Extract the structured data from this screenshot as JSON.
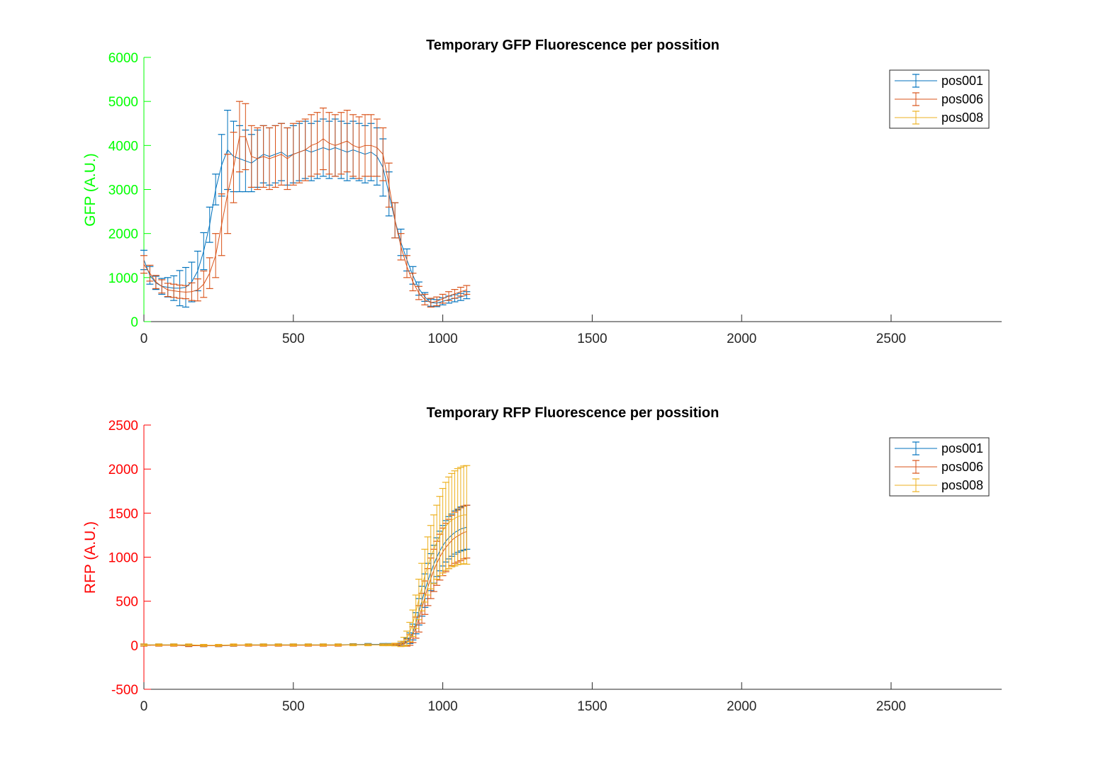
{
  "chart_data": [
    {
      "type": "line",
      "title": "Temporary GFP Fluorescence per possition",
      "xlabel": "",
      "ylabel": "GFP (A.U.)",
      "ylabel_color": "#00ff00",
      "xlim": [
        0,
        2870
      ],
      "ylim": [
        0,
        6000
      ],
      "xticks": [
        0,
        500,
        1000,
        1500,
        2000,
        2500
      ],
      "yticks": [
        0,
        1000,
        2000,
        3000,
        4000,
        5000,
        6000
      ],
      "grid": false,
      "legend_position": "top-right",
      "series": [
        {
          "name": "pos001",
          "color": "#0072bd",
          "x": [
            0,
            20,
            40,
            60,
            80,
            100,
            120,
            140,
            160,
            180,
            200,
            220,
            240,
            260,
            280,
            300,
            320,
            340,
            360,
            380,
            400,
            420,
            440,
            460,
            480,
            500,
            520,
            540,
            560,
            580,
            600,
            620,
            640,
            660,
            680,
            700,
            720,
            740,
            760,
            780,
            800,
            820,
            840,
            860,
            880,
            900,
            920,
            940,
            960,
            980,
            1000,
            1020,
            1040,
            1060,
            1080
          ],
          "y": [
            1400,
            1050,
            880,
            800,
            780,
            760,
            760,
            780,
            900,
            1150,
            1600,
            2200,
            3000,
            3550,
            3900,
            3750,
            3700,
            3650,
            3600,
            3700,
            3800,
            3750,
            3800,
            3850,
            3750,
            3800,
            3850,
            3900,
            3850,
            3900,
            3950,
            3900,
            3950,
            3900,
            3850,
            3900,
            3850,
            3800,
            3850,
            3750,
            3500,
            2900,
            2300,
            1800,
            1400,
            1050,
            750,
            560,
            430,
            420,
            460,
            500,
            530,
            560,
            600
          ],
          "err": [
            220,
            200,
            150,
            180,
            220,
            280,
            400,
            450,
            450,
            450,
            420,
            400,
            350,
            700,
            900,
            800,
            750,
            700,
            650,
            650,
            650,
            650,
            650,
            650,
            650,
            650,
            650,
            650,
            650,
            650,
            650,
            650,
            650,
            650,
            650,
            650,
            650,
            650,
            650,
            650,
            650,
            500,
            400,
            300,
            250,
            200,
            150,
            100,
            80,
            80,
            80,
            80,
            80,
            80,
            80
          ]
        },
        {
          "name": "pos006",
          "color": "#d95319",
          "x": [
            0,
            20,
            40,
            60,
            80,
            100,
            120,
            140,
            160,
            180,
            200,
            220,
            240,
            260,
            280,
            300,
            320,
            340,
            360,
            380,
            400,
            420,
            440,
            460,
            480,
            500,
            520,
            540,
            560,
            580,
            600,
            620,
            640,
            660,
            680,
            700,
            720,
            740,
            760,
            780,
            800,
            820,
            840,
            860,
            880,
            900,
            920,
            940,
            960,
            980,
            1000,
            1020,
            1040,
            1060,
            1080
          ],
          "y": [
            1300,
            1100,
            900,
            800,
            720,
            700,
            680,
            670,
            680,
            720,
            850,
            1100,
            1500,
            2200,
            2900,
            3500,
            4200,
            4200,
            3750,
            3700,
            3750,
            3700,
            3750,
            3800,
            3700,
            3800,
            3850,
            3900,
            4000,
            4050,
            4150,
            4050,
            4000,
            4050,
            4100,
            4000,
            3950,
            4000,
            4000,
            3950,
            3800,
            3100,
            2300,
            1700,
            1250,
            900,
            650,
            500,
            430,
            460,
            520,
            580,
            630,
            680,
            720
          ],
          "err": [
            200,
            180,
            150,
            150,
            150,
            150,
            150,
            150,
            200,
            250,
            300,
            350,
            500,
            700,
            900,
            800,
            800,
            750,
            700,
            700,
            700,
            700,
            700,
            700,
            700,
            700,
            700,
            700,
            700,
            700,
            700,
            700,
            700,
            700,
            700,
            700,
            700,
            700,
            700,
            650,
            600,
            500,
            400,
            300,
            250,
            200,
            150,
            120,
            100,
            100,
            100,
            100,
            100,
            100,
            100
          ]
        },
        {
          "name": "pos008",
          "color": "#edb120",
          "x": [],
          "y": [],
          "err": []
        }
      ]
    },
    {
      "type": "line",
      "title": "Temporary RFP Fluorescence per possition",
      "xlabel": "",
      "ylabel": "RFP (A.U.)",
      "ylabel_color": "#ff0000",
      "xlim": [
        0,
        2870
      ],
      "ylim": [
        -500,
        2500
      ],
      "xticks": [
        0,
        500,
        1000,
        1500,
        2000,
        2500
      ],
      "yticks": [
        -500,
        0,
        500,
        1000,
        1500,
        2000,
        2500
      ],
      "grid": false,
      "legend_position": "top-right",
      "series": [
        {
          "name": "pos001",
          "color": "#0072bd",
          "x": [
            0,
            50,
            100,
            150,
            200,
            250,
            300,
            350,
            400,
            450,
            500,
            550,
            600,
            650,
            700,
            750,
            800,
            820,
            840,
            860,
            870,
            880,
            890,
            900,
            910,
            920,
            930,
            940,
            950,
            960,
            970,
            980,
            990,
            1000,
            1010,
            1020,
            1030,
            1040,
            1050,
            1060,
            1070,
            1080
          ],
          "y": [
            5,
            5,
            5,
            0,
            -5,
            -5,
            0,
            5,
            5,
            5,
            5,
            5,
            5,
            5,
            8,
            10,
            10,
            10,
            10,
            12,
            20,
            40,
            80,
            150,
            250,
            380,
            500,
            620,
            730,
            830,
            920,
            1000,
            1070,
            1130,
            1180,
            1220,
            1250,
            1280,
            1300,
            1320,
            1330,
            1340
          ],
          "err": [
            10,
            10,
            10,
            10,
            10,
            10,
            10,
            10,
            10,
            10,
            10,
            10,
            10,
            10,
            10,
            10,
            10,
            10,
            10,
            15,
            25,
            40,
            60,
            90,
            120,
            150,
            170,
            190,
            200,
            210,
            215,
            220,
            225,
            230,
            235,
            240,
            240,
            245,
            245,
            250,
            250,
            250
          ]
        },
        {
          "name": "pos006",
          "color": "#d95319",
          "x": [
            0,
            50,
            100,
            150,
            200,
            250,
            300,
            350,
            400,
            450,
            500,
            550,
            600,
            650,
            700,
            750,
            800,
            820,
            840,
            860,
            870,
            880,
            890,
            900,
            910,
            920,
            930,
            940,
            950,
            960,
            970,
            980,
            990,
            1000,
            1010,
            1020,
            1030,
            1040,
            1050,
            1060,
            1070,
            1080
          ],
          "y": [
            0,
            0,
            0,
            -5,
            -5,
            -5,
            0,
            0,
            0,
            0,
            0,
            0,
            0,
            0,
            5,
            5,
            5,
            5,
            5,
            8,
            15,
            30,
            60,
            120,
            200,
            300,
            420,
            540,
            660,
            760,
            850,
            930,
            1000,
            1060,
            1110,
            1150,
            1190,
            1220,
            1240,
            1260,
            1280,
            1290
          ],
          "err": [
            10,
            10,
            10,
            10,
            10,
            10,
            10,
            10,
            10,
            10,
            10,
            10,
            10,
            10,
            10,
            10,
            10,
            10,
            10,
            15,
            25,
            40,
            60,
            90,
            120,
            150,
            170,
            190,
            210,
            230,
            240,
            250,
            260,
            270,
            275,
            280,
            285,
            290,
            295,
            300,
            300,
            300
          ]
        },
        {
          "name": "pos008",
          "color": "#edb120",
          "x": [
            0,
            50,
            100,
            150,
            200,
            250,
            300,
            350,
            400,
            450,
            500,
            550,
            600,
            650,
            700,
            750,
            800,
            820,
            840,
            860,
            870,
            880,
            890,
            900,
            910,
            920,
            930,
            940,
            950,
            960,
            970,
            980,
            990,
            1000,
            1010,
            1020,
            1030,
            1040,
            1050,
            1060,
            1070,
            1080
          ],
          "y": [
            5,
            5,
            5,
            5,
            0,
            0,
            5,
            5,
            5,
            5,
            5,
            5,
            5,
            5,
            5,
            5,
            5,
            5,
            8,
            15,
            40,
            80,
            150,
            250,
            380,
            520,
            660,
            790,
            900,
            1000,
            1090,
            1170,
            1240,
            1300,
            1350,
            1390,
            1420,
            1440,
            1460,
            1470,
            1480,
            1480
          ],
          "err": [
            10,
            10,
            10,
            10,
            10,
            10,
            10,
            10,
            10,
            10,
            10,
            10,
            10,
            10,
            10,
            10,
            10,
            10,
            15,
            30,
            50,
            80,
            110,
            150,
            190,
            230,
            270,
            300,
            330,
            360,
            390,
            420,
            450,
            480,
            500,
            520,
            530,
            540,
            545,
            550,
            555,
            560
          ]
        }
      ]
    }
  ]
}
